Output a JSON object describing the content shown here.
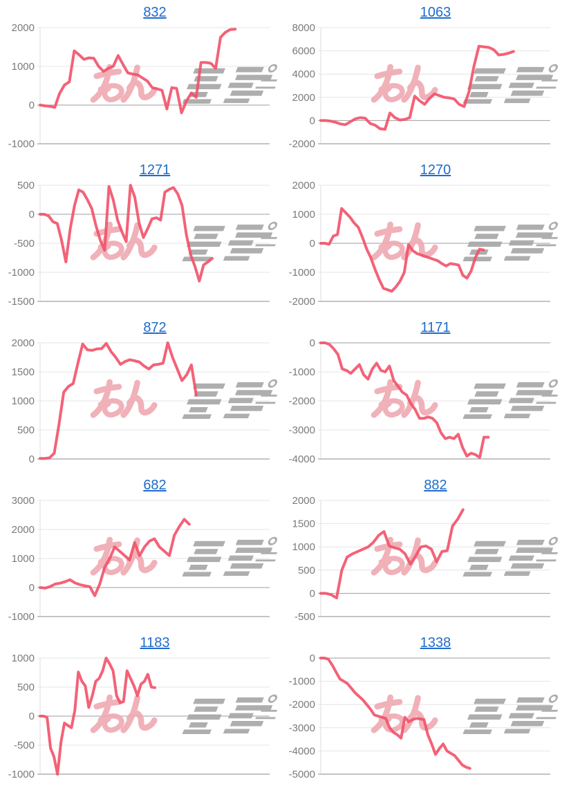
{
  "page": {
    "description": "Grid of 10 daily slump line graphs, each titled with a machine number link",
    "columns": 2,
    "rows": 5
  },
  "style": {
    "background": "#ffffff",
    "title_link_color": "#1f6bcb",
    "line_color": "#f25168",
    "axis_label_color": "#7a7a7a",
    "gridline_color": "#e4e4e4",
    "zero_line_color": "#9e9e9e",
    "axis_line_color": "#c4c4c4",
    "axis_vertical_color": "#dcdcdc",
    "watermark_pink": "#efa9b2",
    "watermark_gray": "#a6a6a6"
  },
  "chart_data": [
    {
      "type": "line",
      "title": "832",
      "legend": "none",
      "grid": true,
      "ylim": [
        -1000,
        2000
      ],
      "yticks": [
        2000,
        1000,
        0,
        -1000
      ],
      "span": 0.85,
      "values": [
        0,
        -20,
        -30,
        -60,
        300,
        520,
        600,
        1400,
        1300,
        1180,
        1220,
        1210,
        1000,
        870,
        950,
        1000,
        1280,
        1050,
        830,
        800,
        780,
        700,
        620,
        450,
        420,
        380,
        -100,
        450,
        430,
        -200,
        100,
        310,
        200,
        1100,
        1100,
        1080,
        950,
        1750,
        1880,
        1950,
        1960
      ]
    },
    {
      "type": "line",
      "title": "1063",
      "legend": "none",
      "grid": true,
      "ylim": [
        -2000,
        8000
      ],
      "yticks": [
        8000,
        6000,
        4000,
        2000,
        0,
        -2000
      ],
      "span": 0.84,
      "values": [
        0,
        0,
        -50,
        -150,
        -300,
        -350,
        -100,
        150,
        250,
        200,
        -250,
        -400,
        -700,
        -750,
        650,
        250,
        50,
        100,
        250,
        2100,
        1700,
        1400,
        1900,
        2300,
        2150,
        2000,
        1950,
        1850,
        1400,
        1200,
        2500,
        4700,
        6400,
        6350,
        6300,
        6100,
        5650,
        5700,
        5800,
        5950
      ]
    },
    {
      "type": "line",
      "title": "1271",
      "legend": "none",
      "grid": true,
      "ylim": [
        -1500,
        500
      ],
      "yticks": [
        500,
        0,
        -500,
        -1000,
        -1500
      ],
      "span": 0.75,
      "values": [
        0,
        0,
        -30,
        -130,
        -160,
        -450,
        -820,
        -250,
        150,
        420,
        380,
        250,
        100,
        -200,
        -450,
        -620,
        480,
        250,
        -100,
        -300,
        -470,
        500,
        300,
        -150,
        -400,
        -250,
        -80,
        -60,
        -100,
        380,
        430,
        460,
        350,
        150,
        -350,
        -700,
        -900,
        -1150,
        -870,
        -820,
        -760
      ]
    },
    {
      "type": "line",
      "title": "1270",
      "legend": "none",
      "grid": true,
      "ylim": [
        -2000,
        2000
      ],
      "yticks": [
        2000,
        1000,
        0,
        -1000,
        -2000
      ],
      "span": 0.71,
      "values": [
        0,
        0,
        -30,
        250,
        300,
        1200,
        1050,
        900,
        700,
        550,
        200,
        -200,
        -500,
        -900,
        -1250,
        -1550,
        -1600,
        -1650,
        -1500,
        -1300,
        -1000,
        -50,
        -250,
        -350,
        -400,
        -450,
        -500,
        -550,
        -600,
        -700,
        -780,
        -700,
        -720,
        -750,
        -1100,
        -1200,
        -950,
        -500,
        -200,
        -230
      ]
    },
    {
      "type": "line",
      "title": "872",
      "legend": "none",
      "grid": true,
      "ylim": [
        0,
        2000
      ],
      "yticks": [
        2000,
        1500,
        1000,
        500,
        0
      ],
      "span": 0.68,
      "values": [
        10,
        10,
        20,
        100,
        600,
        1150,
        1250,
        1300,
        1650,
        1980,
        1880,
        1870,
        1895,
        1900,
        1990,
        1850,
        1750,
        1630,
        1680,
        1710,
        1690,
        1670,
        1600,
        1550,
        1620,
        1630,
        1650,
        2000,
        1750,
        1550,
        1350,
        1450,
        1620,
        1100
      ]
    },
    {
      "type": "line",
      "title": "1171",
      "legend": "none",
      "grid": true,
      "ylim": [
        -4000,
        0
      ],
      "yticks": [
        0,
        -1000,
        -2000,
        -3000,
        -4000
      ],
      "span": 0.73,
      "values": [
        0,
        0,
        -50,
        -200,
        -400,
        -900,
        -950,
        -1050,
        -900,
        -750,
        -1100,
        -1250,
        -900,
        -700,
        -950,
        -1000,
        -800,
        -1300,
        -1500,
        -1700,
        -1800,
        -2100,
        -2300,
        -2600,
        -2600,
        -2550,
        -2600,
        -2750,
        -3100,
        -3300,
        -3250,
        -3300,
        -3150,
        -3600,
        -3900,
        -3800,
        -3850,
        -3950,
        -3250,
        -3250
      ]
    },
    {
      "type": "line",
      "title": "682",
      "legend": "none",
      "grid": true,
      "ylim": [
        -1000,
        3000
      ],
      "yticks": [
        3000,
        2000,
        1000,
        0,
        -1000
      ],
      "span": 0.65,
      "values": [
        0,
        -20,
        30,
        120,
        150,
        200,
        270,
        160,
        100,
        60,
        30,
        -280,
        120,
        700,
        1000,
        1400,
        1250,
        1100,
        950,
        1550,
        1100,
        1400,
        1600,
        1680,
        1400,
        1250,
        1100,
        1800,
        2100,
        2350,
        2180
      ]
    },
    {
      "type": "line",
      "title": "882",
      "legend": "none",
      "grid": true,
      "ylim": [
        -500,
        2000
      ],
      "yticks": [
        2000,
        1500,
        1000,
        500,
        0,
        -500
      ],
      "span": 0.62,
      "values": [
        0,
        0,
        -30,
        -100,
        500,
        780,
        850,
        900,
        950,
        1000,
        1100,
        1250,
        1330,
        1020,
        980,
        950,
        850,
        630,
        800,
        1000,
        1020,
        950,
        680,
        900,
        920,
        1450,
        1600,
        1800
      ]
    },
    {
      "type": "line",
      "title": "1183",
      "legend": "none",
      "grid": true,
      "ylim": [
        -1000,
        1000
      ],
      "yticks": [
        1000,
        500,
        0,
        -500,
        -1000
      ],
      "span": 0.5,
      "values": [
        0,
        0,
        -20,
        -550,
        -700,
        -1000,
        -450,
        -120,
        -160,
        -200,
        100,
        760,
        600,
        520,
        150,
        350,
        600,
        650,
        780,
        1000,
        900,
        780,
        350,
        230,
        250,
        780,
        650,
        520,
        350,
        550,
        600,
        720,
        500,
        490
      ]
    },
    {
      "type": "line",
      "title": "1338",
      "legend": "none",
      "grid": true,
      "ylim": [
        -5000,
        0
      ],
      "yticks": [
        0,
        -1000,
        -2000,
        -3000,
        -4000,
        -5000
      ],
      "span": 0.65,
      "values": [
        0,
        0,
        -50,
        -300,
        -600,
        -900,
        -1000,
        -1100,
        -1300,
        -1500,
        -1650,
        -1800,
        -2000,
        -2200,
        -2450,
        -2500,
        -2550,
        -2600,
        -3000,
        -3200,
        -3300,
        -3450,
        -2550,
        -2750,
        -2650,
        -2600,
        -2620,
        -2650,
        -3300,
        -3700,
        -4150,
        -3900,
        -3700,
        -4000,
        -4100,
        -4200,
        -4400,
        -4600,
        -4700,
        -4750
      ]
    }
  ]
}
